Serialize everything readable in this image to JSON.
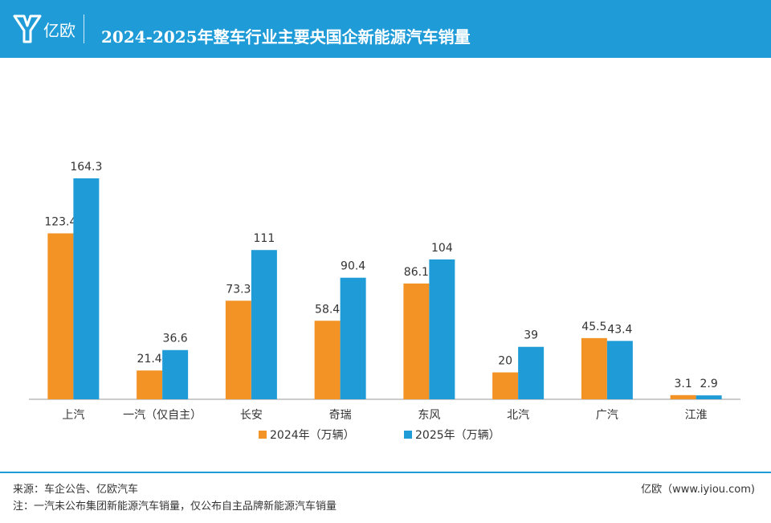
{
  "header": {
    "logo": "亿欧",
    "title": "2024-2025年整车行业主要央国企新能源汽车销量"
  },
  "chart_data": {
    "type": "bar",
    "categories": [
      "上汽",
      "一汽（仅自主）",
      "长安",
      "奇瑞",
      "东风",
      "北汽",
      "广汽",
      "江淮"
    ],
    "series": [
      {
        "name": "2024年（万辆）",
        "color": "#f39325",
        "values": [
          123.4,
          21.4,
          73.3,
          58.4,
          86.1,
          20,
          45.5,
          3.1
        ]
      },
      {
        "name": "2025年（万辆）",
        "color": "#1f9cd8",
        "values": [
          164.3,
          36.6,
          111,
          90.4,
          104,
          39,
          43.4,
          2.9
        ]
      }
    ]
  },
  "footer": {
    "source": "来源：车企公告、亿欧汽车",
    "note": "注：一汽未公布集团新能源汽车销量，仅公布自主品牌新能源汽车销量",
    "site": "亿欧（www.iyiou.com)"
  }
}
